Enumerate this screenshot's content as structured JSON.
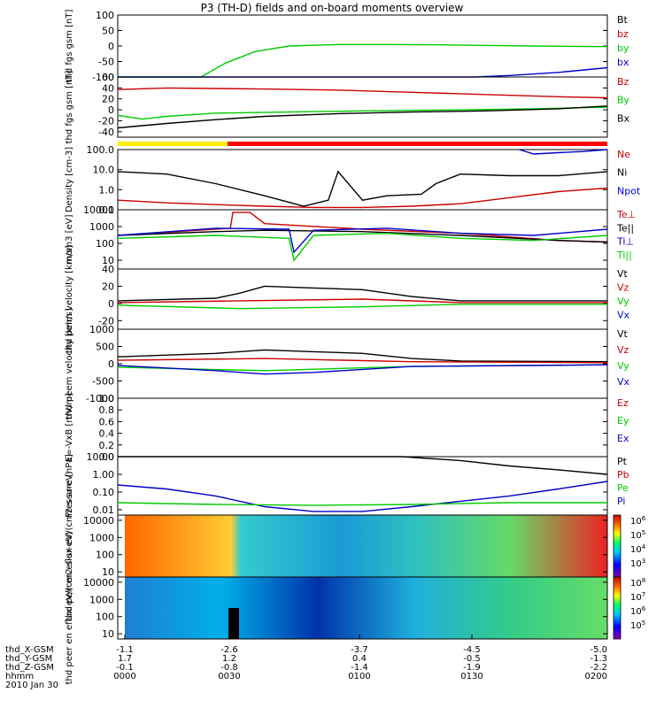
{
  "title": "P3 (TH-D) fields and on-board moments overview",
  "colors": {
    "black": "#000000",
    "red": "#cc0000",
    "green": "#00cc00",
    "blue": "#0000cc",
    "yellow": "#ffee00",
    "flag_red": "#ff0000",
    "bg": "#ffffff"
  },
  "chart_data": [
    {
      "type": "line",
      "ylabel": "thd fgs gsm [nT]",
      "ylim": [
        -100,
        100
      ],
      "yticks": [
        "100",
        "50",
        "0",
        "-50",
        "-100"
      ],
      "legend": [
        {
          "name": "Bt",
          "color": "#000000"
        },
        {
          "name": "bz",
          "color": "#cc0000"
        },
        {
          "name": "by",
          "color": "#00cc00"
        },
        {
          "name": "bx",
          "color": "#0000cc"
        }
      ],
      "series": [
        {
          "name": "by",
          "x": [
            0.0,
            0.17,
            0.22,
            0.28,
            0.35,
            0.45,
            0.55,
            0.65,
            0.75,
            0.85,
            1.0
          ],
          "y": [
            -100,
            -100,
            -55,
            -18,
            0,
            5,
            5,
            4,
            2,
            0,
            -2
          ]
        },
        {
          "name": "bx",
          "x": [
            0.0,
            0.73,
            0.8,
            0.9,
            1.0
          ],
          "y": [
            -100,
            -100,
            -95,
            -85,
            -70
          ]
        }
      ]
    },
    {
      "type": "line",
      "ylabel": "thd fgs gsm [nT]",
      "ylim": [
        -50,
        60
      ],
      "yticks": [
        "60",
        "40",
        "20",
        "0",
        "-20",
        "-40"
      ],
      "legend": [
        {
          "name": "Bz",
          "color": "#cc0000"
        },
        {
          "name": "By",
          "color": "#00cc00"
        },
        {
          "name": "Bx",
          "color": "#000000"
        }
      ],
      "series": [
        {
          "name": "Bz",
          "x": [
            0.0,
            0.1,
            0.2,
            0.3,
            0.45,
            0.6,
            0.75,
            0.9,
            1.0
          ],
          "y": [
            37,
            40,
            39,
            38,
            36,
            32,
            28,
            24,
            22
          ]
        },
        {
          "name": "By",
          "x": [
            0.0,
            0.05,
            0.1,
            0.2,
            0.35,
            0.5,
            0.7,
            0.85,
            1.0
          ],
          "y": [
            -10,
            -17,
            -12,
            -6,
            -4,
            -2,
            0,
            2,
            5
          ]
        },
        {
          "name": "Bx",
          "x": [
            0.0,
            0.1,
            0.2,
            0.3,
            0.45,
            0.6,
            0.75,
            0.9,
            1.0
          ],
          "y": [
            -33,
            -25,
            -18,
            -12,
            -7,
            -4,
            -2,
            2,
            7
          ]
        }
      ]
    },
    {
      "type": "line",
      "ylabel": "Density [cm-3]",
      "yscale": "log",
      "ylim": [
        0.1,
        100
      ],
      "yticks": [
        "100.0",
        "10.0",
        "1.0",
        "0.1"
      ],
      "legend": [
        {
          "name": "Ne",
          "color": "#cc0000"
        },
        {
          "name": "Ni",
          "color": "#000000"
        },
        {
          "name": "Npot",
          "color": "#0000cc"
        }
      ],
      "series": [
        {
          "name": "Ni",
          "x": [
            0.0,
            0.1,
            0.2,
            0.3,
            0.38,
            0.43,
            0.45,
            0.5,
            0.55,
            0.62,
            0.65,
            0.7,
            0.8,
            0.9,
            1.0
          ],
          "y": [
            8,
            6,
            2,
            0.5,
            0.15,
            0.3,
            8,
            0.3,
            0.5,
            0.6,
            2,
            6,
            5,
            5,
            8
          ]
        },
        {
          "name": "Ne",
          "x": [
            0.0,
            0.1,
            0.2,
            0.3,
            0.4,
            0.5,
            0.6,
            0.7,
            0.8,
            0.9,
            1.0
          ],
          "y": [
            0.3,
            0.22,
            0.18,
            0.15,
            0.13,
            0.13,
            0.15,
            0.2,
            0.4,
            0.8,
            1.2
          ]
        },
        {
          "name": "Npot",
          "x": [
            0.82,
            0.85,
            0.9,
            0.95,
            1.0
          ],
          "y": [
            100,
            60,
            70,
            80,
            100
          ]
        }
      ]
    },
    {
      "type": "line",
      "ylabel": "mom3 [eV]",
      "yscale": "log",
      "ylim": [
        3,
        10000
      ],
      "yticks": [
        "10000",
        "1000",
        "100",
        "10"
      ],
      "legend": [
        {
          "name": "Te⊥",
          "color": "#cc0000"
        },
        {
          "name": "Te||",
          "color": "#000000"
        },
        {
          "name": "Ti⊥",
          "color": "#0000cc"
        },
        {
          "name": "Ti||",
          "color": "#00cc00"
        }
      ],
      "series": [
        {
          "name": "Te⊥",
          "x": [
            0.0,
            0.23,
            0.235,
            0.27,
            0.3,
            0.5,
            0.7,
            0.9,
            1.0
          ],
          "y": [
            300,
            800,
            7000,
            7000,
            1500,
            700,
            400,
            150,
            120
          ]
        },
        {
          "name": "Te||",
          "x": [
            0.0,
            0.2,
            0.3,
            0.5,
            0.7,
            0.9,
            1.0
          ],
          "y": [
            300,
            500,
            600,
            500,
            300,
            150,
            120
          ]
        },
        {
          "name": "Ti⊥",
          "x": [
            0.0,
            0.2,
            0.35,
            0.36,
            0.4,
            0.55,
            0.7,
            0.85,
            1.0
          ],
          "y": [
            300,
            800,
            700,
            30,
            600,
            800,
            400,
            300,
            700
          ]
        },
        {
          "name": "Ti||",
          "x": [
            0.0,
            0.2,
            0.35,
            0.36,
            0.4,
            0.55,
            0.7,
            0.85,
            1.0
          ],
          "y": [
            200,
            300,
            200,
            10,
            300,
            400,
            200,
            150,
            300
          ]
        }
      ]
    },
    {
      "type": "line",
      "ylabel": "thd peim velocity [km/s]",
      "ylim": [
        -30,
        40
      ],
      "yticks": [
        "40",
        "20",
        "0",
        "-20"
      ],
      "legend": [
        {
          "name": "Vt",
          "color": "#000000"
        },
        {
          "name": "Vz",
          "color": "#cc0000"
        },
        {
          "name": "Vy",
          "color": "#00cc00"
        },
        {
          "name": "Vx",
          "color": "#0000cc"
        }
      ],
      "series": [
        {
          "name": "Vt",
          "x": [
            0.0,
            0.2,
            0.25,
            0.3,
            0.4,
            0.5,
            0.6,
            0.7,
            1.0
          ],
          "y": [
            3,
            6,
            12,
            20,
            18,
            16,
            8,
            3,
            3
          ]
        },
        {
          "name": "Vz",
          "x": [
            0.0,
            0.25,
            0.5,
            0.7,
            1.0
          ],
          "y": [
            1,
            3,
            5,
            1,
            1
          ]
        },
        {
          "name": "Vy",
          "x": [
            0.0,
            0.25,
            0.5,
            0.7,
            1.0
          ],
          "y": [
            -2,
            -6,
            -4,
            -1,
            -1
          ]
        }
      ]
    },
    {
      "type": "line",
      "ylabel": "thd peem velocity [km/s]",
      "ylim": [
        -1000,
        1000
      ],
      "yticks": [
        "1000",
        "500",
        "0",
        "-500",
        "-1000"
      ],
      "legend": [
        {
          "name": "Vt",
          "color": "#000000"
        },
        {
          "name": "Vz",
          "color": "#cc0000"
        },
        {
          "name": "Vy",
          "color": "#00cc00"
        },
        {
          "name": "Vx",
          "color": "#0000cc"
        }
      ],
      "series": [
        {
          "name": "Vt",
          "x": [
            0.0,
            0.2,
            0.3,
            0.4,
            0.5,
            0.6,
            0.7,
            1.0
          ],
          "y": [
            200,
            300,
            400,
            350,
            300,
            150,
            80,
            60
          ]
        },
        {
          "name": "Vz",
          "x": [
            0.0,
            0.3,
            0.6,
            1.0
          ],
          "y": [
            100,
            150,
            60,
            30
          ]
        },
        {
          "name": "Vy",
          "x": [
            0.0,
            0.3,
            0.6,
            1.0
          ],
          "y": [
            -100,
            -200,
            -80,
            -30
          ]
        },
        {
          "name": "Vx",
          "x": [
            0.0,
            0.2,
            0.3,
            0.4,
            0.6,
            1.0
          ],
          "y": [
            -50,
            -200,
            -300,
            -250,
            -80,
            -30
          ]
        }
      ]
    },
    {
      "type": "line",
      "ylabel": "E=-VxB [mV/m]",
      "ylim": [
        0,
        1
      ],
      "yticks": [
        "1.0",
        "0.8",
        "0.6",
        "0.4",
        "0.2",
        "0.0"
      ],
      "legend": [
        {
          "name": "Ez",
          "color": "#cc0000"
        },
        {
          "name": "Ey",
          "color": "#00cc00"
        },
        {
          "name": "Ex",
          "color": "#0000cc"
        }
      ],
      "series": []
    },
    {
      "type": "line",
      "ylabel": "Pressure [nPa]",
      "yscale": "log",
      "ylim": [
        0.005,
        10
      ],
      "yticks": [
        "10.00",
        "1.00",
        "0.10",
        "0.01"
      ],
      "legend": [
        {
          "name": "Pt",
          "color": "#000000"
        },
        {
          "name": "Pb",
          "color": "#cc0000"
        },
        {
          "name": "Pe",
          "color": "#00cc00"
        },
        {
          "name": "Pi",
          "color": "#0000cc"
        }
      ],
      "series": [
        {
          "name": "Pi",
          "x": [
            0.0,
            0.1,
            0.2,
            0.3,
            0.4,
            0.5,
            0.6,
            0.7,
            0.8,
            0.9,
            1.0
          ],
          "y": [
            0.25,
            0.15,
            0.06,
            0.015,
            0.008,
            0.008,
            0.015,
            0.03,
            0.06,
            0.15,
            0.4
          ]
        },
        {
          "name": "Pe",
          "x": [
            0.0,
            0.2,
            0.4,
            0.6,
            0.8,
            1.0
          ],
          "y": [
            0.025,
            0.02,
            0.018,
            0.02,
            0.025,
            0.025
          ]
        },
        {
          "name": "Pt",
          "x": [
            0.0,
            0.58,
            0.7,
            0.8,
            0.9,
            1.0
          ],
          "y": [
            10,
            10,
            6,
            3,
            1.8,
            1
          ]
        }
      ]
    },
    {
      "type": "heatmap",
      "ylabel": "thd peir en eflux eV/(cm2-s-sr-eV)",
      "yscale": "log",
      "ylim": [
        5,
        20000
      ],
      "yticks": [
        "10000",
        "1000",
        "100",
        "10"
      ],
      "colorbar_ticks": [
        "10^6",
        "10^5",
        "10^4",
        "10^3"
      ]
    },
    {
      "type": "heatmap",
      "ylabel": "thd peer en eflux eV/(cm2-s-sr-eV)",
      "yscale": "log",
      "ylim": [
        5,
        20000
      ],
      "yticks": [
        "10000",
        "1000",
        "100",
        "10"
      ],
      "colorbar_ticks": [
        "10^8",
        "10^7",
        "10^6",
        "10^5"
      ]
    }
  ],
  "xaxis": {
    "rows": [
      {
        "label": "thd_X-GSM",
        "values": [
          "-1.1",
          "-2.6",
          "-3.7",
          "-4.5",
          "-5.0"
        ]
      },
      {
        "label": "thd_Y-GSM",
        "values": [
          "1.7",
          "1.2",
          "0.4",
          "-0.5",
          "-1.3"
        ]
      },
      {
        "label": "thd_Z-GSM",
        "values": [
          "-0.1",
          "-0.8",
          "-1.4",
          "-1.9",
          "-2.2"
        ]
      },
      {
        "label": "hhmm",
        "values": [
          "0000",
          "0030",
          "0100",
          "0130",
          "0200"
        ]
      }
    ],
    "date": "2010 Jan 30"
  }
}
